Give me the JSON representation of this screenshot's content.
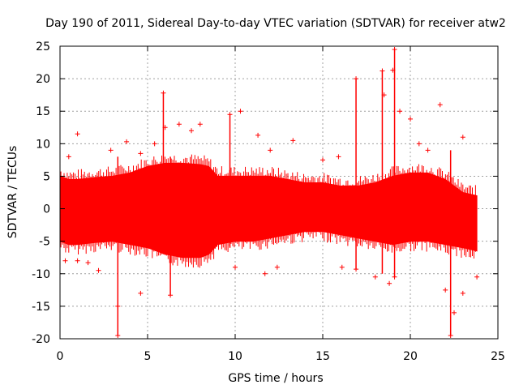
{
  "chart_data": {
    "type": "scatter",
    "title": "Day 190 of 2011, Sidereal Day-to-day VTEC variation (SDTVAR) for receiver atw2",
    "xlabel": "GPS time / hours",
    "ylabel": "SDTVAR / TECUs",
    "xlim": [
      0,
      25
    ],
    "ylim": [
      -20,
      25
    ],
    "xticks": [
      0,
      5,
      10,
      15,
      20,
      25
    ],
    "xtick_labels": [
      "0",
      "5",
      "10",
      "15",
      "20",
      "25"
    ],
    "yticks": [
      -20,
      -15,
      -10,
      -5,
      0,
      5,
      10,
      15,
      20,
      25
    ],
    "ytick_labels": [
      "-20",
      "-15",
      "-10",
      "-5",
      "0",
      "5",
      "10",
      "15",
      "20",
      "25"
    ],
    "grid": true,
    "marker": "plus",
    "series_color": "#ff0000",
    "envelope": {
      "x": [
        0.0,
        0.5,
        1.0,
        2.0,
        3.0,
        4.0,
        5.0,
        6.0,
        7.0,
        8.0,
        8.5,
        9.0,
        10.0,
        11.0,
        12.0,
        13.0,
        14.0,
        15.0,
        16.0,
        17.0,
        18.0,
        19.0,
        20.0,
        21.0,
        22.0,
        23.0,
        23.8
      ],
      "upper": [
        5.0,
        4.5,
        4.5,
        4.8,
        5.0,
        5.5,
        6.5,
        7.0,
        7.0,
        6.8,
        6.5,
        5.0,
        5.0,
        5.0,
        5.0,
        4.5,
        4.0,
        4.0,
        3.5,
        3.5,
        4.0,
        5.0,
        5.5,
        5.5,
        4.5,
        2.5,
        2.0
      ],
      "lower": [
        -5.0,
        -5.5,
        -5.5,
        -5.2,
        -5.0,
        -5.5,
        -6.0,
        -7.0,
        -7.5,
        -7.5,
        -7.0,
        -5.5,
        -5.0,
        -5.0,
        -4.5,
        -4.0,
        -3.5,
        -3.5,
        -4.0,
        -4.5,
        -5.0,
        -5.5,
        -5.0,
        -5.0,
        -5.5,
        -6.0,
        -6.5
      ]
    },
    "extremes": [
      {
        "x": 0.3,
        "y": -8.0
      },
      {
        "x": 0.5,
        "y": 8.0
      },
      {
        "x": 1.0,
        "y": 11.5
      },
      {
        "x": 1.0,
        "y": -8.0
      },
      {
        "x": 1.6,
        "y": -8.3
      },
      {
        "x": 2.2,
        "y": -9.5
      },
      {
        "x": 2.9,
        "y": 9.0
      },
      {
        "x": 3.3,
        "y": -19.5
      },
      {
        "x": 3.3,
        "y": -15.0
      },
      {
        "x": 3.8,
        "y": 10.3
      },
      {
        "x": 4.6,
        "y": -13.0
      },
      {
        "x": 4.6,
        "y": 8.5
      },
      {
        "x": 5.4,
        "y": 10.0
      },
      {
        "x": 5.9,
        "y": 17.8
      },
      {
        "x": 6.0,
        "y": 12.5
      },
      {
        "x": 6.3,
        "y": -13.3
      },
      {
        "x": 6.8,
        "y": 13.0
      },
      {
        "x": 7.5,
        "y": 12.0
      },
      {
        "x": 8.0,
        "y": 13.0
      },
      {
        "x": 9.7,
        "y": 14.5
      },
      {
        "x": 10.0,
        "y": -9.0
      },
      {
        "x": 10.3,
        "y": 15.0
      },
      {
        "x": 11.3,
        "y": 11.3
      },
      {
        "x": 11.7,
        "y": -10.0
      },
      {
        "x": 12.0,
        "y": 9.0
      },
      {
        "x": 12.4,
        "y": -9.0
      },
      {
        "x": 13.3,
        "y": 10.5
      },
      {
        "x": 15.0,
        "y": 7.5
      },
      {
        "x": 15.9,
        "y": 8.0
      },
      {
        "x": 16.1,
        "y": -9.0
      },
      {
        "x": 16.9,
        "y": 20.0
      },
      {
        "x": 16.9,
        "y": -9.3
      },
      {
        "x": 18.0,
        "y": -10.5
      },
      {
        "x": 18.4,
        "y": 21.2
      },
      {
        "x": 18.5,
        "y": 17.5
      },
      {
        "x": 18.8,
        "y": -11.5
      },
      {
        "x": 19.1,
        "y": 24.5
      },
      {
        "x": 19.0,
        "y": 21.3
      },
      {
        "x": 19.1,
        "y": -10.5
      },
      {
        "x": 19.4,
        "y": 15.0
      },
      {
        "x": 20.0,
        "y": 13.8
      },
      {
        "x": 20.5,
        "y": 10.0
      },
      {
        "x": 21.0,
        "y": 9.0
      },
      {
        "x": 21.7,
        "y": 16.0
      },
      {
        "x": 22.0,
        "y": -12.5
      },
      {
        "x": 22.3,
        "y": -19.5
      },
      {
        "x": 22.5,
        "y": -16.0
      },
      {
        "x": 23.0,
        "y": 11.0
      },
      {
        "x": 23.0,
        "y": -13.0
      },
      {
        "x": 23.8,
        "y": -10.5
      }
    ],
    "spikes": [
      {
        "x": 3.3,
        "low": -19.5,
        "high": 8.0
      },
      {
        "x": 5.9,
        "low": -7.0,
        "high": 17.8
      },
      {
        "x": 6.3,
        "low": -13.3,
        "high": 8.0
      },
      {
        "x": 9.7,
        "low": -6.0,
        "high": 14.5
      },
      {
        "x": 18.4,
        "low": -10.0,
        "high": 21.2
      },
      {
        "x": 19.1,
        "low": -10.5,
        "high": 24.5
      },
      {
        "x": 22.3,
        "low": -19.5,
        "high": 9.0
      },
      {
        "x": 16.9,
        "low": -9.3,
        "high": 20.0
      }
    ]
  }
}
